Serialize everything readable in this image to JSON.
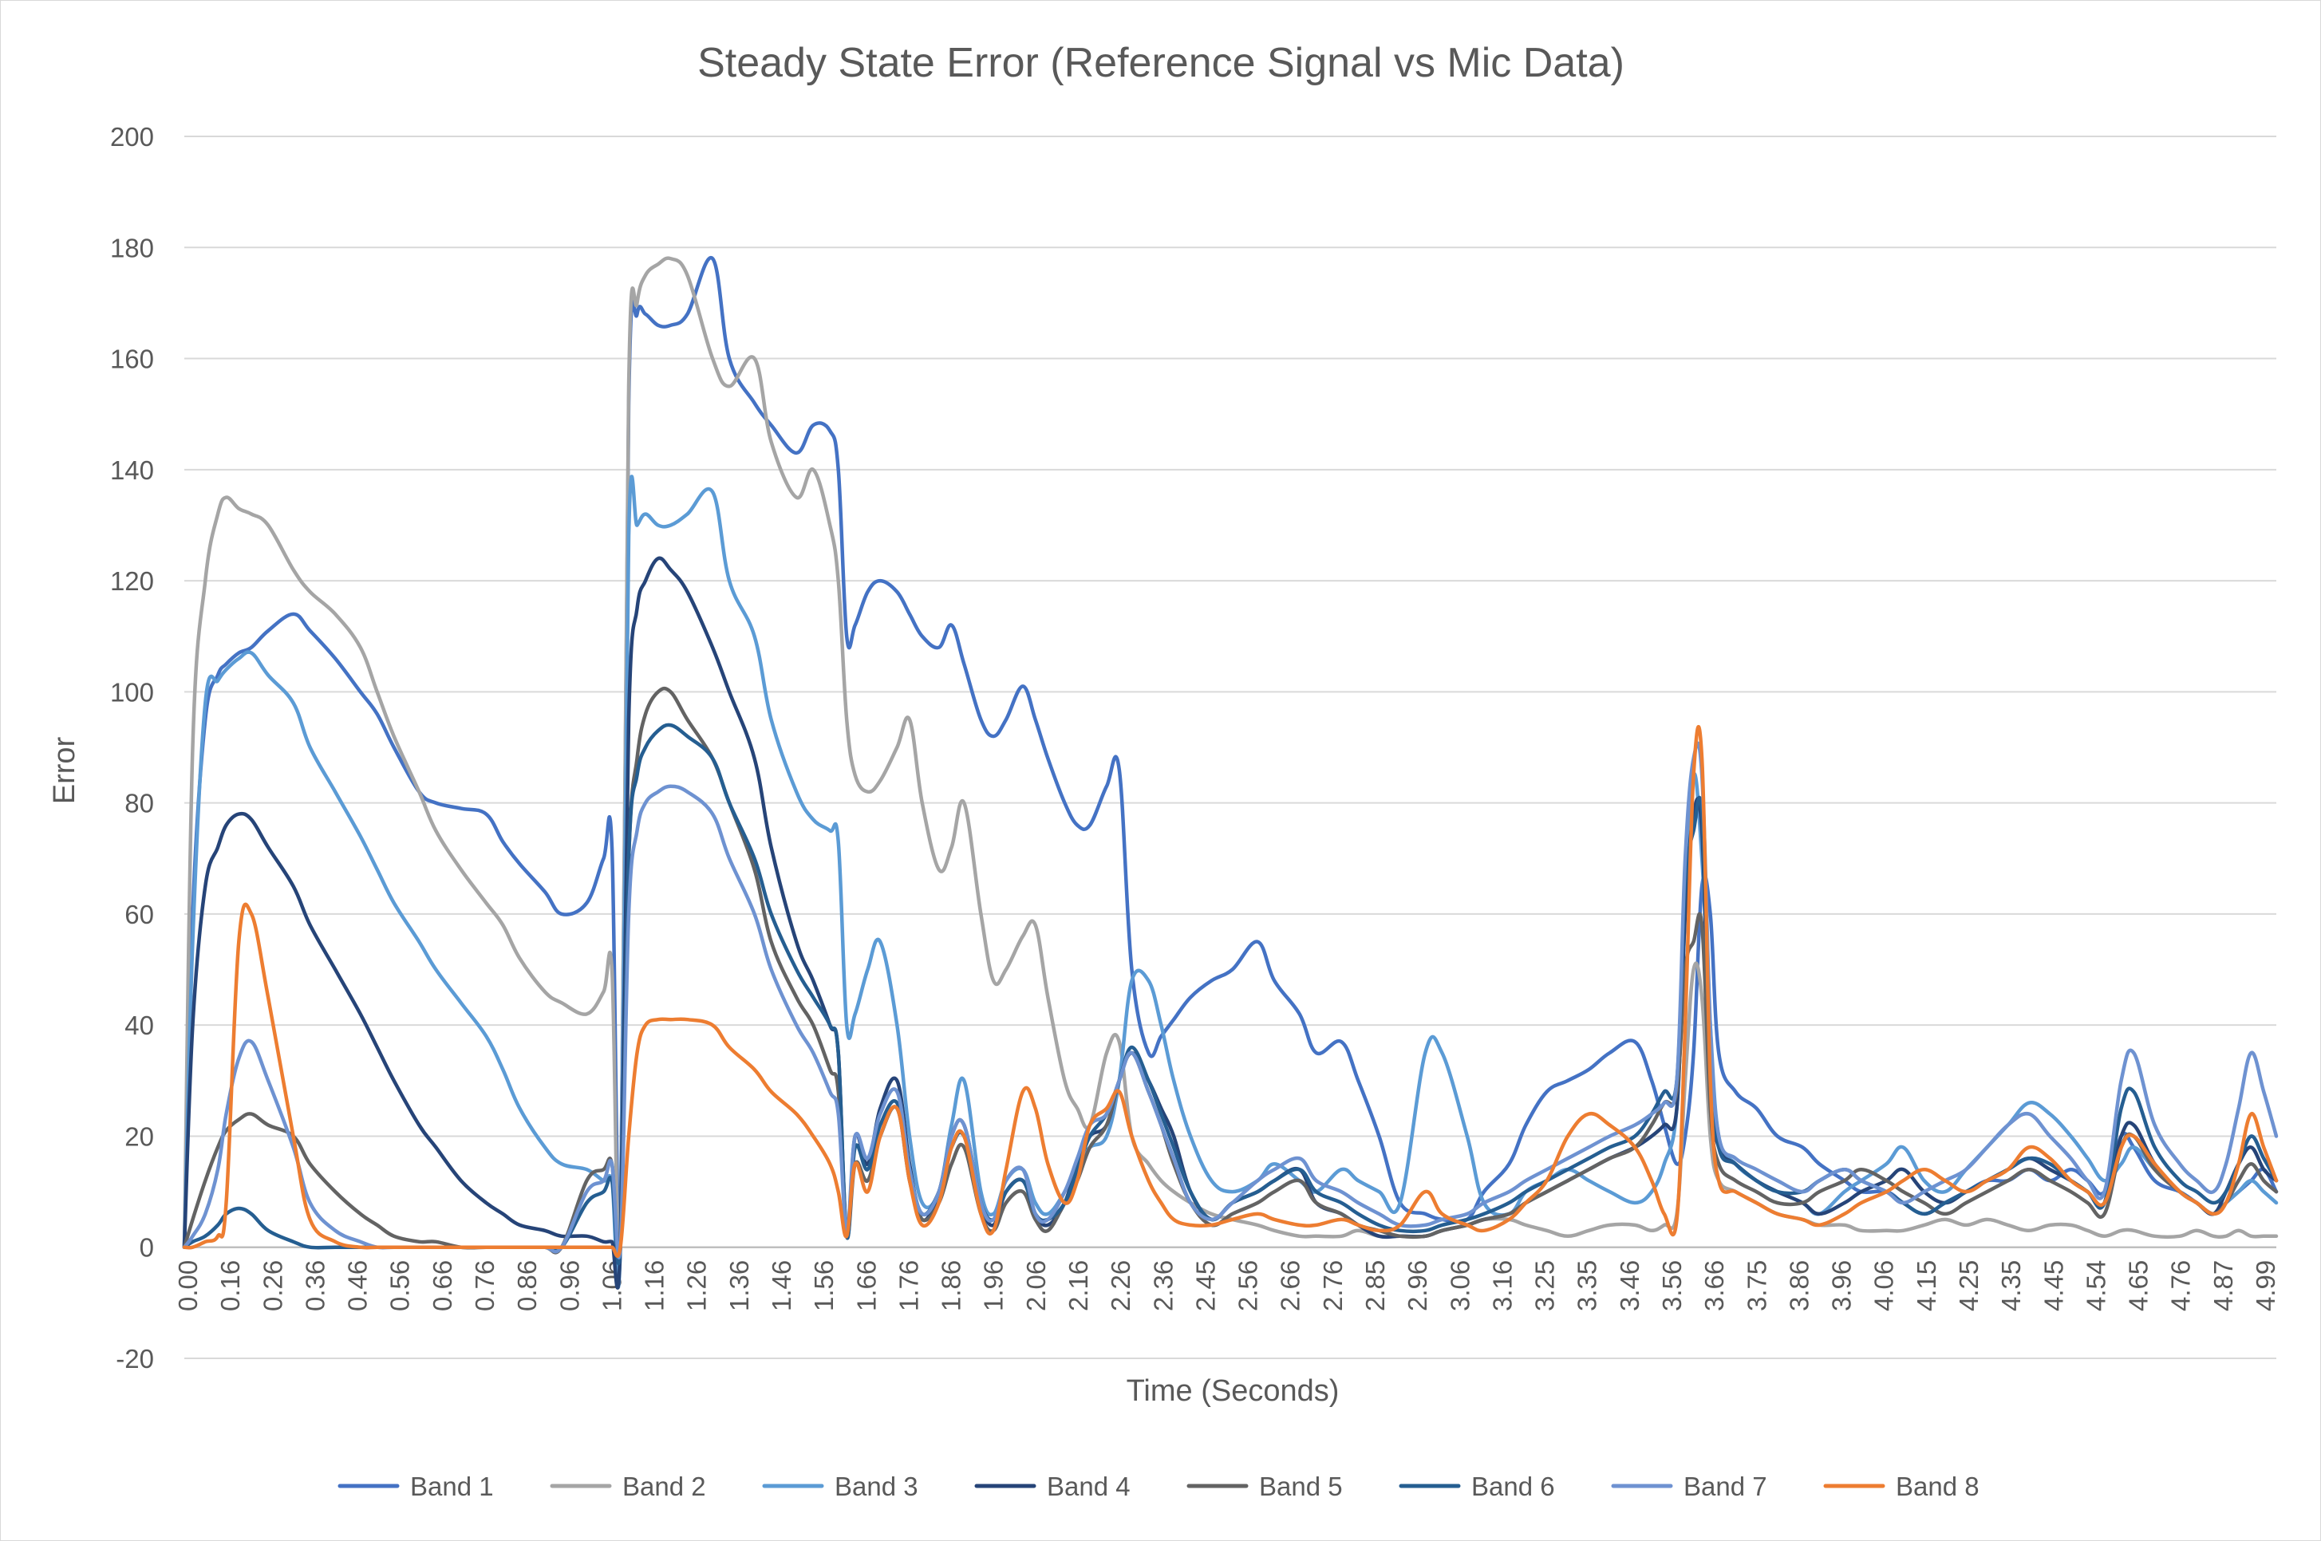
{
  "chart_data": {
    "type": "line",
    "title": "Steady State Error (Reference Signal vs Mic Data)",
    "xlabel": "Time (Seconds)",
    "ylabel": "Error",
    "xlim": [
      0,
      4.99
    ],
    "ylim": [
      -20,
      200
    ],
    "y_ticks": [
      -20,
      0,
      20,
      40,
      60,
      80,
      100,
      120,
      140,
      160,
      180,
      200
    ],
    "x_tick_labels": [
      "0.00",
      "0.16",
      "0.26",
      "0.36",
      "0.46",
      "0.56",
      "0.66",
      "0.76",
      "0.86",
      "0.96",
      "1.06",
      "1.16",
      "1.26",
      "1.36",
      "1.46",
      "1.56",
      "1.66",
      "1.76",
      "1.86",
      "1.96",
      "2.06",
      "2.16",
      "2.26",
      "2.36",
      "2.45",
      "2.56",
      "2.66",
      "2.76",
      "2.85",
      "2.96",
      "3.06",
      "3.16",
      "3.25",
      "3.35",
      "3.46",
      "3.56",
      "3.66",
      "3.75",
      "3.86",
      "3.96",
      "4.06",
      "4.15",
      "4.25",
      "4.35",
      "4.45",
      "4.54",
      "4.65",
      "4.76",
      "4.87",
      "4.99"
    ],
    "grid": "horizontal",
    "legend_position": "bottom",
    "x": [
      0.0,
      0.02,
      0.05,
      0.08,
      0.1,
      0.13,
      0.16,
      0.2,
      0.26,
      0.3,
      0.36,
      0.42,
      0.46,
      0.5,
      0.56,
      0.6,
      0.66,
      0.72,
      0.76,
      0.8,
      0.86,
      0.9,
      0.96,
      1.0,
      1.02,
      1.04,
      1.06,
      1.08,
      1.1,
      1.13,
      1.16,
      1.2,
      1.26,
      1.3,
      1.36,
      1.4,
      1.46,
      1.5,
      1.54,
      1.56,
      1.58,
      1.6,
      1.63,
      1.66,
      1.7,
      1.73,
      1.76,
      1.8,
      1.83,
      1.86,
      1.9,
      1.93,
      1.96,
      2.0,
      2.03,
      2.06,
      2.1,
      2.13,
      2.16,
      2.2,
      2.23,
      2.26,
      2.3,
      2.33,
      2.36,
      2.4,
      2.45,
      2.5,
      2.56,
      2.6,
      2.66,
      2.7,
      2.76,
      2.8,
      2.85,
      2.9,
      2.96,
      3.0,
      3.06,
      3.1,
      3.16,
      3.2,
      3.25,
      3.3,
      3.35,
      3.4,
      3.46,
      3.5,
      3.53,
      3.56,
      3.58,
      3.6,
      3.62,
      3.64,
      3.66,
      3.7,
      3.75,
      3.8,
      3.86,
      3.9,
      3.96,
      4.0,
      4.06,
      4.1,
      4.15,
      4.2,
      4.25,
      4.3,
      4.35,
      4.4,
      4.45,
      4.5,
      4.54,
      4.58,
      4.62,
      4.65,
      4.7,
      4.76,
      4.8,
      4.84,
      4.87,
      4.9,
      4.93,
      4.96,
      4.99
    ],
    "series": [
      {
        "name": "Band 1",
        "color": "#4472C4",
        "values": [
          0,
          60,
          95,
          103,
          105,
          107,
          108,
          111,
          114,
          111,
          106,
          100,
          96,
          90,
          82,
          80,
          79,
          78,
          73,
          69,
          64,
          60,
          62,
          70,
          72,
          0,
          152,
          168,
          168,
          166,
          166,
          168,
          178,
          160,
          152,
          148,
          143,
          148,
          147,
          140,
          110,
          112,
          118,
          120,
          118,
          114,
          110,
          108,
          112,
          105,
          95,
          92,
          95,
          101,
          95,
          88,
          80,
          76,
          76,
          83,
          86,
          50,
          35,
          38,
          41,
          45,
          48,
          50,
          55,
          48,
          42,
          35,
          37,
          30,
          20,
          8,
          6,
          5,
          5,
          10,
          15,
          22,
          28,
          30,
          32,
          35,
          37,
          30,
          22,
          15,
          20,
          35,
          65,
          60,
          35,
          28,
          25,
          20,
          18,
          15,
          12,
          10,
          10,
          8,
          6,
          8,
          10,
          12,
          12,
          14,
          12,
          14,
          12,
          10,
          20,
          18,
          12,
          10,
          8,
          6,
          8,
          10,
          12,
          14,
          10
        ]
      },
      {
        "name": "Band 2",
        "color": "#A5A5A5",
        "values": [
          0,
          90,
          120,
          132,
          135,
          133,
          132,
          130,
          122,
          118,
          114,
          108,
          100,
          92,
          82,
          75,
          68,
          62,
          58,
          52,
          46,
          44,
          42,
          46,
          50,
          0,
          155,
          170,
          175,
          177,
          178,
          175,
          160,
          155,
          160,
          145,
          135,
          140,
          130,
          120,
          95,
          85,
          82,
          84,
          90,
          95,
          80,
          68,
          72,
          80,
          60,
          48,
          50,
          56,
          58,
          45,
          30,
          25,
          22,
          35,
          37,
          20,
          15,
          12,
          10,
          8,
          6,
          5,
          4,
          3,
          2,
          2,
          2,
          3,
          2,
          2,
          2,
          3,
          4,
          5,
          5,
          4,
          3,
          2,
          3,
          4,
          4,
          3,
          4,
          6,
          30,
          50,
          45,
          20,
          12,
          10,
          8,
          6,
          5,
          4,
          4,
          3,
          3,
          3,
          4,
          5,
          4,
          5,
          4,
          3,
          4,
          4,
          3,
          2,
          3,
          3,
          2,
          2,
          3,
          2,
          2,
          3,
          2,
          2,
          2
        ]
      },
      {
        "name": "Band 3",
        "color": "#5B9BD5",
        "values": [
          0,
          55,
          98,
          102,
          104,
          106,
          107,
          103,
          98,
          90,
          82,
          74,
          68,
          62,
          55,
          50,
          44,
          38,
          32,
          25,
          18,
          15,
          14,
          12,
          12,
          0,
          128,
          130,
          132,
          130,
          130,
          132,
          136,
          120,
          110,
          95,
          82,
          77,
          75,
          73,
          40,
          42,
          50,
          55,
          40,
          20,
          8,
          10,
          22,
          30,
          10,
          6,
          12,
          14,
          8,
          6,
          10,
          15,
          18,
          20,
          30,
          48,
          48,
          40,
          30,
          20,
          12,
          10,
          12,
          15,
          12,
          10,
          14,
          12,
          10,
          8,
          35,
          35,
          20,
          8,
          6,
          10,
          12,
          14,
          12,
          10,
          8,
          10,
          15,
          25,
          60,
          85,
          70,
          40,
          20,
          15,
          12,
          10,
          8,
          6,
          10,
          12,
          15,
          18,
          12,
          10,
          14,
          18,
          22,
          26,
          24,
          20,
          16,
          12,
          15,
          18,
          14,
          10,
          8,
          6,
          8,
          10,
          12,
          10,
          8
        ]
      },
      {
        "name": "Band 4",
        "color": "#264478",
        "values": [
          0,
          40,
          65,
          72,
          76,
          78,
          77,
          72,
          65,
          58,
          50,
          42,
          36,
          30,
          22,
          18,
          12,
          8,
          6,
          4,
          3,
          2,
          2,
          1,
          1,
          0,
          95,
          115,
          120,
          124,
          122,
          118,
          108,
          100,
          88,
          72,
          55,
          48,
          40,
          35,
          2,
          20,
          15,
          25,
          30,
          15,
          5,
          10,
          20,
          22,
          8,
          4,
          10,
          12,
          6,
          4,
          8,
          15,
          20,
          22,
          30,
          35,
          30,
          25,
          20,
          10,
          5,
          8,
          10,
          12,
          14,
          8,
          6,
          4,
          2,
          2,
          2,
          3,
          4,
          5,
          6,
          8,
          10,
          12,
          14,
          16,
          18,
          20,
          22,
          25,
          60,
          78,
          75,
          30,
          18,
          15,
          12,
          10,
          8,
          6,
          8,
          10,
          12,
          14,
          10,
          8,
          10,
          12,
          14,
          16,
          14,
          12,
          10,
          8,
          20,
          22,
          15,
          10,
          8,
          6,
          10,
          15,
          18,
          14,
          12
        ]
      },
      {
        "name": "Band 5",
        "color": "#636363",
        "values": [
          0,
          5,
          12,
          18,
          21,
          23,
          24,
          22,
          20,
          15,
          10,
          6,
          4,
          2,
          1,
          1,
          0,
          0,
          0,
          0,
          0,
          0,
          12,
          14,
          15,
          0,
          70,
          88,
          96,
          100,
          100,
          95,
          88,
          80,
          68,
          55,
          45,
          40,
          32,
          28,
          2,
          15,
          12,
          20,
          25,
          12,
          5,
          8,
          15,
          18,
          6,
          3,
          8,
          10,
          5,
          3,
          8,
          12,
          18,
          22,
          30,
          35,
          28,
          22,
          15,
          8,
          4,
          6,
          8,
          10,
          12,
          8,
          6,
          4,
          3,
          2,
          2,
          3,
          4,
          5,
          6,
          8,
          10,
          12,
          14,
          16,
          18,
          22,
          26,
          28,
          50,
          55,
          58,
          25,
          15,
          12,
          10,
          8,
          8,
          10,
          12,
          14,
          12,
          10,
          8,
          6,
          8,
          10,
          12,
          14,
          12,
          10,
          8,
          6,
          18,
          20,
          14,
          10,
          8,
          6,
          8,
          12,
          15,
          12,
          10
        ]
      },
      {
        "name": "Band 6",
        "color": "#255E91",
        "values": [
          0,
          1,
          2,
          4,
          6,
          7,
          6,
          3,
          1,
          0,
          0,
          0,
          0,
          0,
          0,
          0,
          0,
          0,
          0,
          0,
          0,
          0,
          8,
          10,
          12,
          0,
          70,
          85,
          90,
          93,
          94,
          92,
          88,
          80,
          70,
          60,
          50,
          45,
          40,
          35,
          2,
          18,
          14,
          22,
          26,
          14,
          6,
          10,
          18,
          20,
          8,
          5,
          10,
          12,
          6,
          5,
          8,
          14,
          20,
          24,
          30,
          36,
          30,
          24,
          18,
          10,
          5,
          8,
          10,
          12,
          14,
          10,
          8,
          6,
          4,
          3,
          3,
          4,
          5,
          6,
          8,
          10,
          12,
          14,
          16,
          18,
          20,
          24,
          28,
          30,
          65,
          75,
          78,
          35,
          18,
          15,
          12,
          10,
          10,
          12,
          14,
          12,
          10,
          8,
          6,
          8,
          10,
          12,
          14,
          16,
          15,
          12,
          10,
          8,
          25,
          28,
          18,
          12,
          10,
          8,
          10,
          15,
          20,
          16,
          12
        ]
      },
      {
        "name": "Band 7",
        "color": "#6E92D1",
        "values": [
          0,
          2,
          6,
          14,
          24,
          34,
          37,
          30,
          18,
          8,
          3,
          1,
          0,
          0,
          0,
          0,
          0,
          0,
          0,
          0,
          0,
          0,
          10,
          12,
          15,
          0,
          60,
          75,
          80,
          82,
          83,
          82,
          78,
          70,
          60,
          50,
          40,
          35,
          28,
          24,
          3,
          20,
          16,
          24,
          28,
          14,
          6,
          10,
          20,
          22,
          8,
          5,
          12,
          14,
          6,
          5,
          10,
          16,
          22,
          24,
          30,
          35,
          28,
          22,
          16,
          8,
          5,
          8,
          12,
          14,
          16,
          12,
          10,
          8,
          6,
          4,
          4,
          5,
          6,
          8,
          10,
          12,
          14,
          16,
          18,
          20,
          22,
          24,
          26,
          30,
          70,
          88,
          85,
          40,
          20,
          16,
          14,
          12,
          10,
          12,
          14,
          12,
          10,
          8,
          10,
          12,
          14,
          18,
          22,
          24,
          20,
          16,
          12,
          10,
          30,
          35,
          22,
          15,
          12,
          10,
          15,
          25,
          35,
          28,
          20
        ]
      },
      {
        "name": "Band 8",
        "color": "#ED7D31",
        "values": [
          0,
          0,
          1,
          2,
          8,
          55,
          60,
          45,
          20,
          5,
          1,
          0,
          0,
          0,
          0,
          0,
          0,
          0,
          0,
          0,
          0,
          0,
          0,
          0,
          0,
          0,
          20,
          35,
          40,
          41,
          41,
          41,
          40,
          36,
          32,
          28,
          24,
          20,
          15,
          10,
          2,
          15,
          10,
          20,
          25,
          12,
          4,
          8,
          18,
          20,
          6,
          3,
          14,
          28,
          25,
          15,
          8,
          12,
          22,
          25,
          28,
          20,
          12,
          8,
          5,
          4,
          4,
          5,
          6,
          5,
          4,
          4,
          5,
          4,
          3,
          4,
          10,
          6,
          4,
          3,
          5,
          8,
          12,
          20,
          24,
          22,
          18,
          12,
          6,
          5,
          40,
          85,
          88,
          30,
          12,
          10,
          8,
          6,
          5,
          4,
          6,
          8,
          10,
          12,
          14,
          12,
          10,
          12,
          14,
          18,
          16,
          12,
          10,
          8,
          18,
          20,
          15,
          10,
          8,
          6,
          8,
          15,
          24,
          18,
          12
        ]
      }
    ]
  }
}
